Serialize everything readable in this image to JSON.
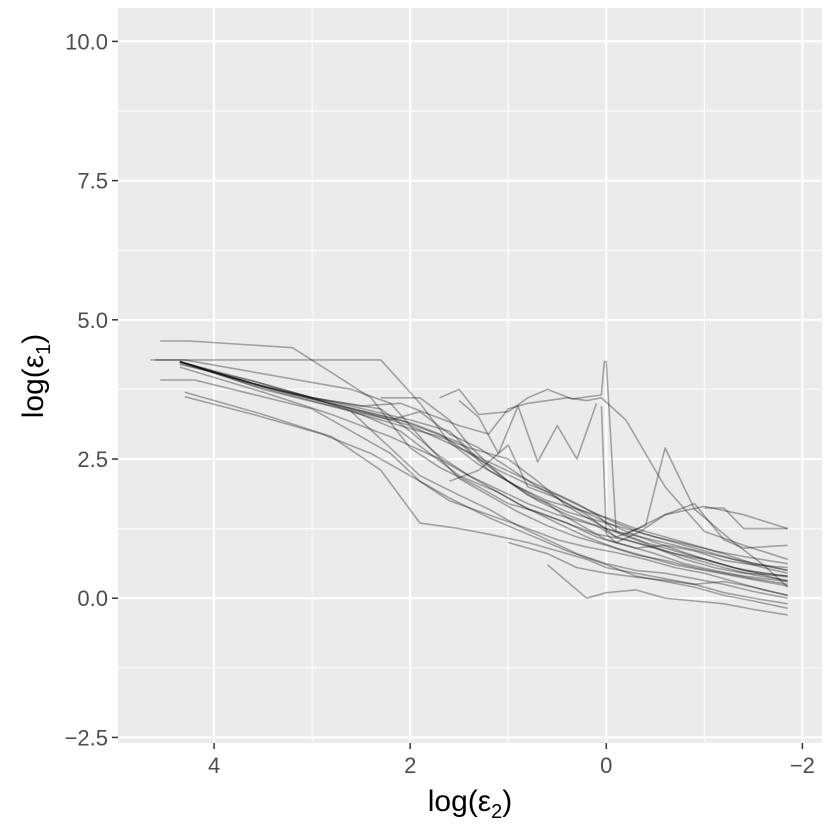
{
  "chart_data": {
    "type": "line",
    "xlabel": "log(ε2)",
    "ylabel": "log(ε1)",
    "x_reversed": true,
    "xlim": [
      4.98,
      -2.2
    ],
    "ylim": [
      -2.6,
      10.6
    ],
    "x_ticks": [
      4,
      2,
      0,
      -2
    ],
    "x_tick_labels": [
      "4",
      "2",
      "0",
      "−2"
    ],
    "y_ticks": [
      10.0,
      7.5,
      5.0,
      2.5,
      0.0,
      -2.5
    ],
    "y_tick_labels": [
      "10.0",
      "7.5",
      "5.0",
      "2.5",
      "0.0",
      "−2.5"
    ],
    "grid": true,
    "legend": "none",
    "series": [
      {
        "x": [
          4.65,
          4.3,
          2.6,
          2.2,
          1.8,
          1.5,
          1.2,
          0.9,
          0.6,
          0.3,
          0.0,
          -0.3,
          -0.6,
          -0.9,
          -1.2,
          -1.5,
          -1.85
        ],
        "y": [
          4.28,
          4.28,
          3.75,
          3.5,
          2.7,
          2.15,
          1.85,
          1.55,
          1.3,
          1.1,
          0.95,
          0.78,
          0.68,
          0.55,
          0.45,
          0.35,
          0.25
        ]
      },
      {
        "x": [
          4.55,
          4.25,
          3.2,
          2.4,
          2.0,
          1.7,
          1.3,
          1.0,
          0.7,
          0.4,
          0.1,
          -0.2,
          -0.5,
          -0.8,
          -1.1,
          -1.4,
          -1.85
        ],
        "y": [
          4.62,
          4.62,
          4.5,
          3.6,
          2.7,
          2.35,
          2.0,
          1.7,
          1.55,
          1.35,
          1.15,
          1.05,
          0.9,
          0.7,
          0.55,
          0.45,
          0.4
        ]
      },
      {
        "x": [
          4.55,
          4.2,
          3.0,
          2.2,
          1.9,
          1.6,
          1.2,
          0.8,
          0.5,
          0.2,
          -0.1,
          -0.4,
          -0.7,
          -1.0,
          -1.3,
          -1.6,
          -1.85
        ],
        "y": [
          3.92,
          3.92,
          3.4,
          2.6,
          2.1,
          1.75,
          1.5,
          1.25,
          1.05,
          0.92,
          0.82,
          0.7,
          0.55,
          0.45,
          0.3,
          0.15,
          0.05
        ]
      },
      {
        "x": [
          4.6,
          4.25,
          2.3,
          1.9,
          1.6,
          1.3,
          1.0,
          0.7,
          0.4,
          0.1,
          -0.1,
          -0.4,
          -0.7,
          -1.0,
          -1.3,
          -1.6,
          -1.85
        ],
        "y": [
          4.28,
          4.28,
          4.28,
          3.5,
          2.8,
          2.4,
          2.1,
          1.75,
          1.5,
          1.3,
          1.1,
          0.95,
          0.8,
          0.7,
          0.55,
          0.45,
          0.38
        ]
      },
      {
        "x": [
          4.3,
          3.5,
          2.8,
          2.3,
          1.9,
          1.5,
          1.2,
          0.8,
          0.5,
          0.2,
          0.0,
          -0.3,
          -0.6,
          -0.9,
          -1.2,
          -1.5,
          -1.85
        ],
        "y": [
          3.7,
          3.3,
          2.9,
          2.3,
          1.35,
          1.25,
          1.15,
          1.0,
          0.85,
          0.7,
          0.55,
          0.45,
          0.35,
          0.25,
          0.1,
          0.0,
          -0.1
        ]
      },
      {
        "x": [
          4.3,
          3.6,
          2.9,
          2.4,
          2.0,
          1.6,
          1.2,
          0.8,
          0.4,
          0.0,
          -0.3,
          -0.6,
          -0.9,
          -1.2,
          -1.5,
          -1.85
        ],
        "y": [
          3.62,
          3.3,
          2.95,
          2.6,
          2.2,
          1.8,
          1.45,
          1.15,
          0.85,
          0.6,
          0.4,
          0.3,
          0.2,
          0.05,
          -0.05,
          -0.18
        ]
      },
      {
        "x": [
          4.35,
          3.5,
          2.8,
          2.2,
          1.7,
          1.3,
          0.9,
          0.5,
          0.2,
          -0.1,
          -0.4,
          -0.7,
          -1.0,
          -1.3,
          -1.6,
          -1.85
        ],
        "y": [
          4.15,
          3.7,
          3.3,
          2.9,
          2.5,
          2.1,
          1.7,
          1.35,
          1.1,
          0.9,
          0.75,
          0.6,
          0.5,
          0.4,
          0.3,
          0.22
        ]
      },
      {
        "x": [
          4.35,
          3.6,
          3.0,
          2.5,
          2.1,
          1.8,
          1.5,
          1.1,
          0.8,
          0.4,
          0.1,
          -0.2,
          -0.5,
          -0.8,
          -1.1,
          -1.4,
          -1.85
        ],
        "y": [
          4.2,
          3.9,
          3.6,
          3.3,
          3.0,
          2.6,
          2.2,
          1.9,
          1.6,
          1.35,
          1.1,
          0.95,
          0.8,
          0.62,
          0.5,
          0.4,
          0.3
        ]
      },
      {
        "x": [
          4.35,
          3.5,
          2.7,
          2.1,
          1.7,
          1.4,
          1.0,
          0.7,
          0.4,
          0.0,
          -0.3,
          -0.6,
          -0.9,
          -1.2,
          -1.5,
          -1.85
        ],
        "y": [
          4.25,
          3.75,
          3.4,
          3.1,
          2.9,
          2.7,
          2.5,
          2.1,
          1.65,
          1.25,
          1.05,
          0.85,
          0.7,
          0.55,
          0.42,
          0.32
        ]
      },
      {
        "x": [
          4.35,
          3.6,
          2.8,
          2.1,
          1.8,
          1.5,
          1.2,
          0.9,
          0.6,
          0.3,
          0.0,
          -0.3,
          -0.6,
          -0.9,
          -1.2,
          -1.5,
          -1.85
        ],
        "y": [
          4.22,
          3.85,
          3.5,
          3.2,
          3.0,
          2.8,
          2.3,
          2.0,
          1.75,
          1.6,
          1.45,
          1.25,
          1.1,
          0.95,
          0.8,
          0.62,
          0.5
        ]
      },
      {
        "x": [
          4.35,
          3.5,
          2.6,
          2.0,
          1.6,
          1.3,
          1.0,
          0.7,
          0.4,
          0.1,
          -0.2,
          -0.5,
          -0.8,
          -1.1,
          -1.4,
          -1.85
        ],
        "y": [
          4.25,
          3.8,
          3.45,
          3.2,
          3.0,
          2.5,
          2.1,
          1.8,
          1.55,
          1.4,
          1.25,
          1.1,
          0.98,
          0.85,
          0.75,
          0.62
        ]
      },
      {
        "x": [
          4.35,
          3.6,
          2.9,
          2.2,
          1.9,
          1.6,
          1.3,
          1.0,
          0.7,
          0.4,
          0.1,
          -0.2,
          -0.5,
          -0.8,
          -1.1,
          -1.4,
          -1.85
        ],
        "y": [
          4.25,
          3.82,
          3.5,
          3.2,
          3.35,
          2.95,
          2.7,
          2.35,
          2.0,
          1.7,
          1.45,
          1.2,
          1.0,
          0.82,
          0.65,
          0.5,
          0.4
        ]
      },
      {
        "x": [
          4.35,
          3.4,
          2.6,
          2.0,
          1.7,
          1.4,
          1.1,
          0.8,
          0.5,
          0.2,
          -0.1,
          -0.4,
          -0.7,
          -1.0,
          -1.3,
          -1.6,
          -1.85
        ],
        "y": [
          4.25,
          3.75,
          3.4,
          3.15,
          2.95,
          2.6,
          2.3,
          2.05,
          1.85,
          1.6,
          1.35,
          1.15,
          1.0,
          0.85,
          0.7,
          0.55,
          0.45
        ]
      },
      {
        "x": [
          4.35,
          3.5,
          2.7,
          2.0,
          1.5,
          1.2,
          0.9,
          0.6,
          0.3,
          0.1,
          -0.1,
          -0.4,
          -0.7,
          -1.0,
          -1.3,
          -1.6,
          -1.85
        ],
        "y": [
          4.25,
          3.8,
          3.45,
          3.1,
          2.7,
          2.45,
          2.2,
          1.95,
          1.7,
          1.5,
          1.2,
          1.0,
          0.85,
          0.7,
          0.55,
          0.42,
          0.3
        ]
      },
      {
        "x": [
          4.35,
          3.7,
          3.0,
          2.3,
          2.0,
          1.7,
          1.4,
          1.1,
          0.8,
          0.5,
          0.2,
          -0.1,
          -0.4,
          -0.7,
          -1.0,
          -1.3,
          -1.6,
          -1.85
        ],
        "y": [
          4.25,
          3.9,
          3.6,
          3.4,
          3.0,
          2.55,
          2.2,
          1.95,
          1.7,
          1.5,
          1.35,
          1.2,
          1.08,
          0.95,
          0.82,
          0.7,
          0.6,
          0.5
        ]
      },
      {
        "x": [
          4.35,
          3.6,
          3.0,
          2.5,
          2.1,
          1.8,
          1.5,
          1.2,
          1.0,
          0.8,
          0.6,
          0.4,
          0.2,
          0.05,
          -0.2,
          -0.6,
          -1.0,
          -1.4,
          -1.85
        ],
        "y": [
          4.25,
          3.9,
          3.6,
          3.45,
          3.5,
          3.3,
          3.1,
          2.95,
          3.4,
          3.5,
          3.55,
          3.6,
          3.55,
          3.6,
          3.2,
          2.0,
          1.2,
          0.95,
          0.7
        ]
      },
      {
        "x": [
          1.5,
          1.3,
          1.1,
          0.9,
          0.7,
          0.5,
          0.3,
          0.1
        ],
        "y": [
          3.55,
          3.25,
          2.6,
          3.45,
          2.45,
          3.1,
          2.5,
          3.5
        ]
      },
      {
        "x": [
          1.7,
          1.5,
          1.3,
          1.0,
          0.8,
          0.6,
          0.35,
          0.05,
          0.02,
          0.0,
          -0.1
        ],
        "y": [
          3.6,
          3.75,
          3.3,
          3.35,
          3.6,
          3.75,
          3.58,
          3.65,
          4.25,
          4.25,
          1.2
        ]
      },
      {
        "x": [
          0.05,
          0.0,
          -0.1,
          -0.35,
          -0.6,
          -0.9,
          -1.2,
          -1.4,
          -1.85
        ],
        "y": [
          3.45,
          1.15,
          1.0,
          1.2,
          1.5,
          1.7,
          1.05,
          0.9,
          0.95
        ]
      },
      {
        "x": [
          2.3,
          1.9,
          1.6,
          1.4,
          1.2,
          1.0,
          0.8,
          0.6,
          0.4,
          0.2,
          0.0,
          -0.3,
          -0.6,
          -0.9,
          -1.2,
          -1.5,
          -1.85
        ],
        "y": [
          3.6,
          3.6,
          3.2,
          2.75,
          2.4,
          2.1,
          1.85,
          1.7,
          1.45,
          1.25,
          1.05,
          0.9,
          0.95,
          0.85,
          0.68,
          0.6,
          0.55
        ]
      },
      {
        "x": [
          1.6,
          1.3,
          1.0,
          0.8,
          0.5,
          0.2,
          -0.1,
          -0.4,
          -0.6,
          -0.9,
          -1.3,
          -1.6,
          -1.85
        ],
        "y": [
          2.1,
          2.3,
          2.75,
          2.0,
          1.8,
          1.5,
          1.1,
          1.3,
          2.7,
          1.6,
          1.0,
          0.6,
          0.2
        ]
      },
      {
        "x": [
          -0.2,
          -0.6,
          -1.0,
          -1.4,
          -1.85
        ],
        "y": [
          1.15,
          1.5,
          1.65,
          1.5,
          1.25
        ]
      },
      {
        "x": [
          -1.0,
          -1.2,
          -1.4,
          -1.85
        ],
        "y": [
          1.62,
          1.62,
          1.25,
          1.25
        ]
      },
      {
        "x": [
          2.6,
          1.9,
          1.5,
          1.2,
          0.9,
          0.6,
          0.3,
          0.0,
          -0.3,
          -0.6,
          -0.9,
          -1.2,
          -1.5,
          -1.85
        ],
        "y": [
          3.35,
          2.2,
          1.85,
          1.6,
          1.3,
          1.05,
          0.8,
          0.62,
          0.5,
          0.45,
          0.35,
          0.25,
          0.12,
          0.0
        ]
      },
      {
        "x": [
          0.6,
          0.4,
          0.2,
          0.0,
          -0.3,
          -0.6,
          -0.9,
          -1.2,
          -1.5,
          -1.85
        ],
        "y": [
          0.6,
          0.3,
          0.0,
          0.1,
          0.15,
          0.0,
          -0.05,
          -0.1,
          -0.2,
          -0.3
        ]
      },
      {
        "x": [
          1.0,
          0.6,
          0.3,
          0.0,
          -0.3,
          -0.6,
          -0.9,
          -1.2,
          -1.5,
          -1.85
        ],
        "y": [
          1.0,
          0.8,
          0.55,
          0.45,
          0.38,
          0.32,
          0.25,
          0.3,
          0.2,
          0.05
        ]
      }
    ]
  }
}
